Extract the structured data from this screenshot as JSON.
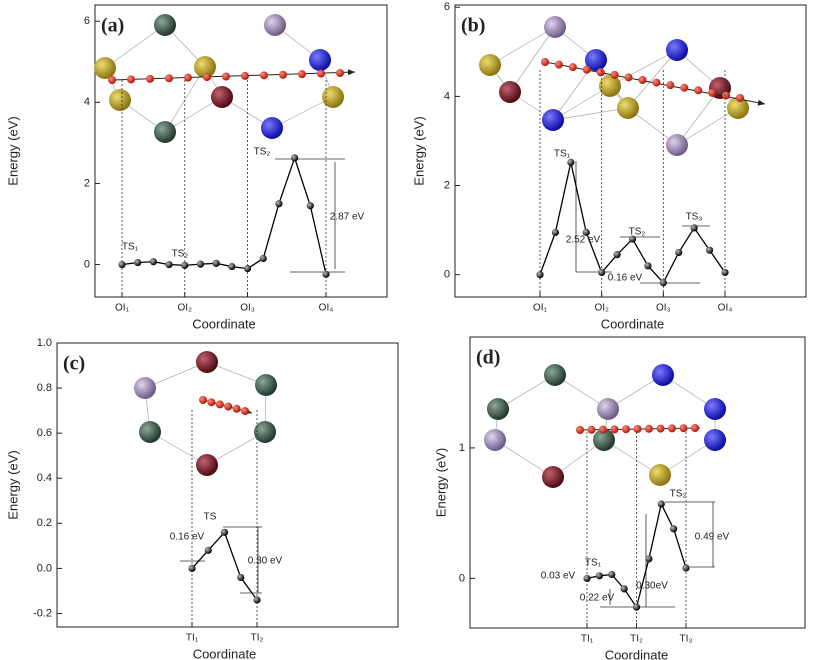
{
  "chart_data": [
    {
      "type": "line",
      "panel_label": "(a)",
      "xlabel": "Coordinate",
      "ylabel": "Energy (eV)",
      "color": "#000000",
      "categories": [
        "OI₁",
        null,
        null,
        null,
        "OI₂",
        null,
        null,
        null,
        "OI₃",
        null,
        null,
        null,
        null,
        "OI₄"
      ],
      "values": [
        0,
        0.05,
        0.07,
        0.0,
        -0.02,
        0.01,
        0.03,
        -0.05,
        -0.1,
        0.15,
        1.5,
        2.63,
        1.45,
        -0.24
      ],
      "ylim": [
        -0.8,
        6.4
      ],
      "yticks": [
        0,
        2,
        4,
        6
      ],
      "annotations": [
        "TS₁",
        "TS₂",
        "TS₂",
        "2.87 eV"
      ]
    },
    {
      "type": "line",
      "panel_label": "(b)",
      "xlabel": "Coordinate",
      "ylabel": "Energy (eV)",
      "color": "#000000",
      "categories": [
        "OI₁",
        null,
        null,
        null,
        "OI₂",
        null,
        null,
        null,
        "OI₃",
        null,
        null,
        null,
        "OI₄"
      ],
      "values": [
        0,
        0.95,
        2.52,
        0.95,
        0.05,
        0.45,
        0.8,
        0.2,
        -0.18,
        0.5,
        1.05,
        0.55,
        0.05
      ],
      "ylim": [
        -0.5,
        6.05
      ],
      "yticks": [
        0,
        2,
        4,
        6
      ],
      "annotations": [
        "TS₁",
        "TS₂",
        "TS₃",
        "2.52 eV",
        "0.16 eV"
      ]
    },
    {
      "type": "line",
      "panel_label": "(c)",
      "xlabel": "Coordinate",
      "ylabel": "Energy (eV)",
      "color": "#000000",
      "categories": [
        "TI₁",
        null,
        null,
        null,
        "TI₂"
      ],
      "values": [
        0.0,
        0.08,
        0.16,
        -0.04,
        -0.14
      ],
      "ylim": [
        -0.26,
        1.0
      ],
      "yticks": [
        -0.2,
        {
          "value": 0,
          "label": "0.0"
        },
        0.2,
        0.4,
        0.6,
        0.8,
        {
          "value": 1,
          "label": "1.0"
        }
      ],
      "annotations": [
        "TS",
        "0.16 eV",
        "0.30 eV"
      ]
    },
    {
      "type": "line",
      "panel_label": "(d)",
      "xlabel": "Coordinate",
      "ylabel": "Energy (eV)",
      "color": "#000000",
      "categories": [
        "TI₁",
        null,
        null,
        null,
        "TI₂",
        null,
        null,
        null,
        "TI₃"
      ],
      "values": [
        0,
        0.02,
        0.03,
        -0.08,
        -0.22,
        0.15,
        0.57,
        0.38,
        0.08
      ],
      "ylim": [
        -0.38,
        1.85
      ],
      "yticks": [
        0,
        1
      ],
      "annotations": [
        "TS₁",
        "TS₂",
        "0.03 eV",
        "0.22 eV",
        "0.30eV",
        "0.49 eV"
      ]
    }
  ]
}
